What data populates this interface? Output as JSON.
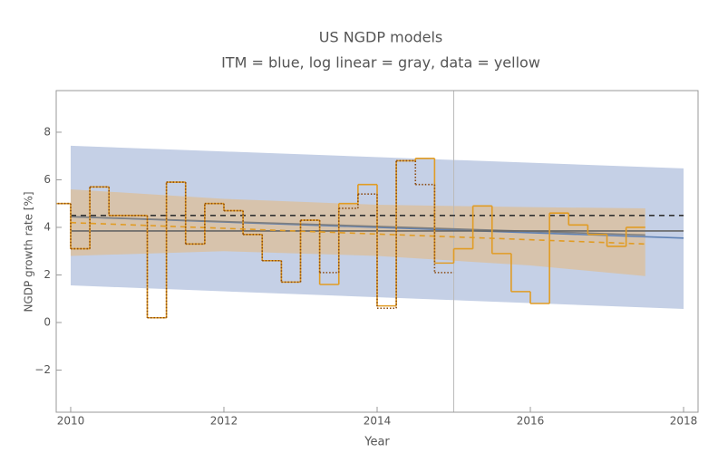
{
  "chart_data": {
    "type": "line",
    "title": "US NGDP models",
    "subtitle": "ITM = blue, log linear = gray, data = yellow",
    "x_label": "Year",
    "y_label": "NGDP growth rate [%]",
    "xlim": [
      2009.811,
      2018.189
    ],
    "ylim": [
      -3.77,
      9.75
    ],
    "xticks": [
      2010,
      2012,
      2014,
      2016,
      2018
    ],
    "yticks": [
      {
        "value": -2,
        "label": "−2"
      },
      0,
      2,
      4,
      6,
      8
    ],
    "vline": 2015,
    "bands": [
      {
        "color": "#c5d0e6",
        "x": [
          2010,
          2018
        ],
        "upper": [
          7.43,
          6.48
        ],
        "lower": [
          1.56,
          0.57
        ]
      },
      {
        "color": "#dcbf98",
        "x": [
          2010,
          2012,
          2014,
          2016,
          2017.5
        ],
        "upper": [
          5.6,
          5.2,
          4.95,
          4.85,
          4.8
        ],
        "lower": [
          2.8,
          3.0,
          2.8,
          2.4,
          1.95
        ]
      }
    ],
    "series": [
      {
        "color": "#333333",
        "dash": "6,5",
        "x": [
          2010,
          2018
        ],
        "values": [
          4.5,
          4.5
        ]
      },
      {
        "color": "#5e81b5",
        "x": [
          2010,
          2018
        ],
        "values": [
          4.45,
          3.55
        ]
      },
      {
        "color": "#7f7f7f",
        "x": [
          2010,
          2017.5
        ],
        "values": [
          4.45,
          3.68
        ]
      },
      {
        "color": "#666666",
        "x": [
          2010,
          2018
        ],
        "values": [
          3.85,
          3.85
        ]
      },
      {
        "color": "#e19c24",
        "dash": "6,5",
        "x": [
          2010,
          2017.5
        ],
        "values": [
          4.2,
          3.3
        ]
      }
    ],
    "steps": [
      {
        "color": "#e19c24",
        "width": 1.6,
        "step": 0.25,
        "x": [
          2009.75,
          2010,
          2010.25,
          2010.5,
          2010.75,
          2011,
          2011.25,
          2011.5,
          2011.75,
          2012,
          2012.25,
          2012.5,
          2012.75,
          2013,
          2013.25,
          2013.5,
          2013.75,
          2014,
          2014.25,
          2014.5,
          2014.75,
          2015,
          2015.25,
          2015.5,
          2015.75,
          2016,
          2016.25,
          2016.5,
          2016.75,
          2017,
          2017.25
        ],
        "values": [
          5.0,
          3.1,
          5.7,
          4.5,
          4.5,
          0.2,
          5.9,
          3.3,
          5.0,
          4.7,
          3.7,
          2.6,
          1.7,
          4.3,
          1.6,
          5.0,
          5.8,
          0.7,
          6.8,
          6.9,
          2.5,
          3.1,
          4.9,
          2.9,
          1.3,
          0.8,
          4.6,
          4.1,
          3.7,
          3.2,
          4.0
        ]
      },
      {
        "color": "#8a4a10",
        "width": 1.6,
        "dash": "1.5,2",
        "step": 0.25,
        "x": [
          2009.75,
          2010,
          2010.25,
          2010.5,
          2010.75,
          2011,
          2011.25,
          2011.5,
          2011.75,
          2012,
          2012.25,
          2012.5,
          2012.75,
          2013,
          2013.25,
          2013.5,
          2013.75,
          2014,
          2014.25,
          2014.5,
          2014.75
        ],
        "values": [
          5.0,
          3.1,
          5.7,
          4.5,
          4.5,
          0.2,
          5.9,
          3.3,
          5.0,
          4.7,
          3.7,
          2.6,
          1.7,
          4.3,
          2.1,
          4.8,
          5.4,
          0.6,
          6.8,
          5.8,
          2.1
        ]
      }
    ]
  }
}
